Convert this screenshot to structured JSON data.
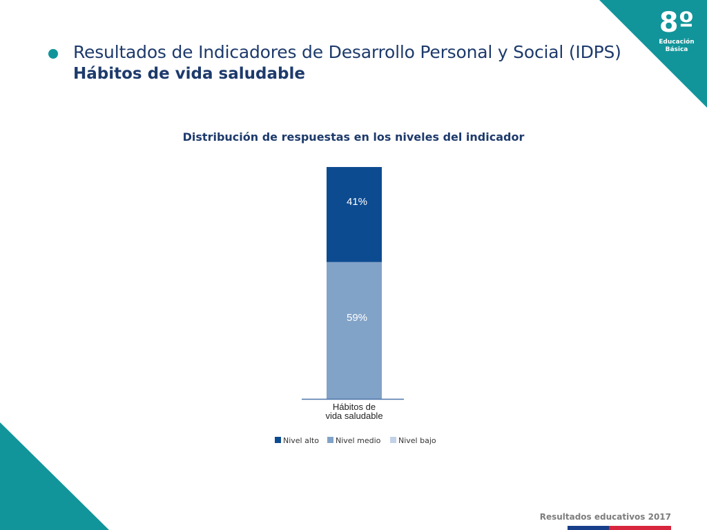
{
  "header": {
    "title": "Resultados de Indicadores de Desarrollo Personal y Social (IDPS)",
    "subtitle": "Hábitos de vida saludable"
  },
  "badge": {
    "grade": "8º",
    "level": "Educación\nBásica"
  },
  "footer": {
    "text": "Resultados educativos 2017"
  },
  "colors": {
    "teal": "#11959a",
    "nivel_alto": "#0d4b91",
    "nivel_medio": "#82a3c8",
    "nivel_bajo": "#c3d2e6"
  },
  "chart_data": {
    "type": "bar",
    "stacked": true,
    "title": "Distribución de respuestas en los niveles del indicador",
    "categories": [
      "Hábitos de\nvida saludable"
    ],
    "series": [
      {
        "name": "Nivel alto",
        "values": [
          41
        ],
        "labels": [
          "41%"
        ],
        "color": "#0d4b91"
      },
      {
        "name": "Nivel medio",
        "values": [
          59
        ],
        "labels": [
          "59%"
        ],
        "color": "#82a3c8"
      },
      {
        "name": "Nivel bajo",
        "values": [
          0
        ],
        "labels": [
          ""
        ],
        "color": "#c3d2e6"
      }
    ],
    "ylim": [
      0,
      100
    ],
    "unit": "%",
    "grid": false,
    "legend": "bottom"
  }
}
